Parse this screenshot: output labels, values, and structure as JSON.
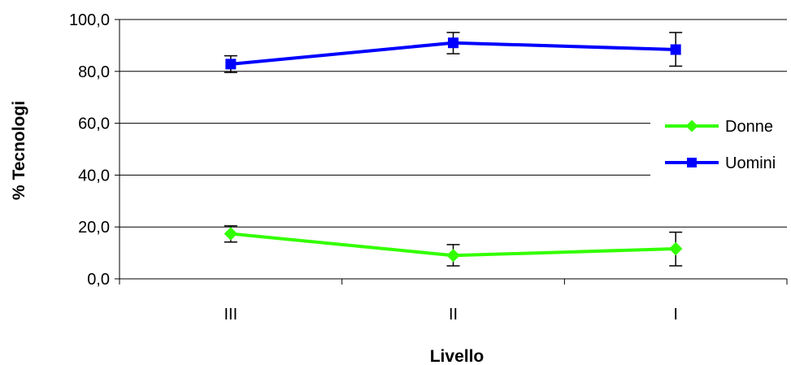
{
  "chart_data": {
    "type": "line",
    "categories": [
      "III",
      "II",
      "I"
    ],
    "series": [
      {
        "name": "Donne",
        "values": [
          17.4,
          9.0,
          11.6
        ],
        "error_low": [
          14.2,
          5.0,
          5.0
        ],
        "error_high": [
          20.4,
          13.2,
          18.0
        ],
        "color": "#33ff00",
        "marker": "diamond"
      },
      {
        "name": "Uomini",
        "values": [
          82.8,
          91.0,
          88.4
        ],
        "error_low": [
          79.6,
          86.8,
          82.0
        ],
        "error_high": [
          86.0,
          95.0,
          95.0
        ],
        "color": "#0000ff",
        "marker": "square"
      }
    ],
    "ylim": [
      0,
      100
    ],
    "yticks": [
      "0,0",
      "20,0",
      "40,0",
      "60,0",
      "80,0",
      "100,0"
    ],
    "xlabel": "Livello",
    "ylabel": "% Tecnologi",
    "grid": "horizontal",
    "legend_position": "right"
  }
}
